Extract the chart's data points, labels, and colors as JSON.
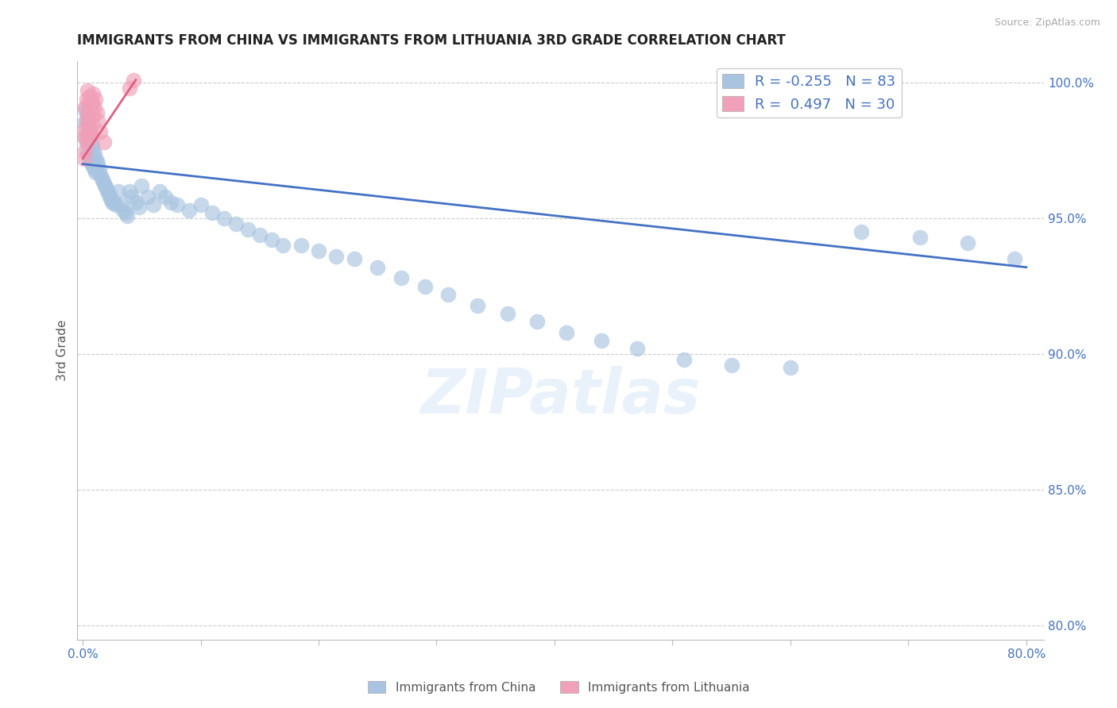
{
  "title": "IMMIGRANTS FROM CHINA VS IMMIGRANTS FROM LITHUANIA 3RD GRADE CORRELATION CHART",
  "source": "Source: ZipAtlas.com",
  "ylabel": "3rd Grade",
  "xlim": [
    -0.005,
    0.815
  ],
  "ylim": [
    0.795,
    1.008
  ],
  "yticks": [
    0.8,
    0.85,
    0.9,
    0.95,
    1.0
  ],
  "yticklabels": [
    "80.0%",
    "85.0%",
    "90.0%",
    "95.0%",
    "100.0%"
  ],
  "xtick_positions": [
    0.0,
    0.1,
    0.2,
    0.3,
    0.4,
    0.5,
    0.6,
    0.7,
    0.8
  ],
  "xticklabels": [
    "0.0%",
    "",
    "",
    "",
    "",
    "",
    "",
    "",
    "80.0%"
  ],
  "blue_color": "#a8c4e0",
  "blue_line_color": "#4472c4",
  "pink_color": "#f0a0b8",
  "pink_line_color": "#e06080",
  "legend_r_blue": "-0.255",
  "legend_n_blue": "83",
  "legend_r_pink": "0.497",
  "legend_n_pink": "30",
  "watermark": "ZIPatlas",
  "blue_line_x0": 0.0,
  "blue_line_y0": 0.97,
  "blue_line_x1": 0.8,
  "blue_line_y1": 0.932,
  "pink_line_x0": 0.0,
  "pink_line_y0": 0.972,
  "pink_line_x1": 0.045,
  "pink_line_y1": 1.001,
  "blue_scatter_x": [
    0.001,
    0.002,
    0.002,
    0.003,
    0.003,
    0.004,
    0.004,
    0.005,
    0.005,
    0.006,
    0.006,
    0.007,
    0.007,
    0.008,
    0.008,
    0.009,
    0.009,
    0.01,
    0.01,
    0.011,
    0.011,
    0.012,
    0.013,
    0.014,
    0.015,
    0.016,
    0.017,
    0.018,
    0.019,
    0.02,
    0.021,
    0.022,
    0.023,
    0.024,
    0.025,
    0.026,
    0.028,
    0.03,
    0.032,
    0.034,
    0.036,
    0.038,
    0.04,
    0.042,
    0.045,
    0.048,
    0.05,
    0.055,
    0.06,
    0.065,
    0.07,
    0.075,
    0.08,
    0.09,
    0.1,
    0.11,
    0.12,
    0.13,
    0.14,
    0.15,
    0.16,
    0.17,
    0.185,
    0.2,
    0.215,
    0.23,
    0.25,
    0.27,
    0.29,
    0.31,
    0.335,
    0.36,
    0.385,
    0.41,
    0.44,
    0.47,
    0.51,
    0.55,
    0.6,
    0.66,
    0.71,
    0.75,
    0.79
  ],
  "blue_scatter_y": [
    0.985,
    0.99,
    0.98,
    0.988,
    0.978,
    0.986,
    0.975,
    0.983,
    0.973,
    0.981,
    0.972,
    0.979,
    0.971,
    0.977,
    0.97,
    0.975,
    0.969,
    0.974,
    0.968,
    0.972,
    0.967,
    0.971,
    0.97,
    0.968,
    0.966,
    0.965,
    0.964,
    0.963,
    0.962,
    0.961,
    0.96,
    0.959,
    0.958,
    0.957,
    0.956,
    0.956,
    0.955,
    0.96,
    0.955,
    0.953,
    0.952,
    0.951,
    0.96,
    0.958,
    0.956,
    0.954,
    0.962,
    0.958,
    0.955,
    0.96,
    0.958,
    0.956,
    0.955,
    0.953,
    0.955,
    0.952,
    0.95,
    0.948,
    0.946,
    0.944,
    0.942,
    0.94,
    0.94,
    0.938,
    0.936,
    0.935,
    0.932,
    0.928,
    0.925,
    0.922,
    0.918,
    0.915,
    0.912,
    0.908,
    0.905,
    0.902,
    0.898,
    0.896,
    0.895,
    0.945,
    0.943,
    0.941,
    0.935
  ],
  "pink_scatter_x": [
    0.001,
    0.001,
    0.002,
    0.002,
    0.002,
    0.003,
    0.003,
    0.003,
    0.004,
    0.004,
    0.004,
    0.005,
    0.005,
    0.006,
    0.006,
    0.006,
    0.007,
    0.007,
    0.008,
    0.008,
    0.009,
    0.009,
    0.01,
    0.011,
    0.012,
    0.013,
    0.015,
    0.018,
    0.04,
    0.043
  ],
  "pink_scatter_y": [
    0.972,
    0.98,
    0.975,
    0.983,
    0.991,
    0.978,
    0.986,
    0.994,
    0.981,
    0.989,
    0.997,
    0.984,
    0.992,
    0.98,
    0.987,
    0.995,
    0.982,
    0.99,
    0.985,
    0.993,
    0.988,
    0.996,
    0.991,
    0.994,
    0.989,
    0.986,
    0.982,
    0.978,
    0.998,
    1.001
  ]
}
